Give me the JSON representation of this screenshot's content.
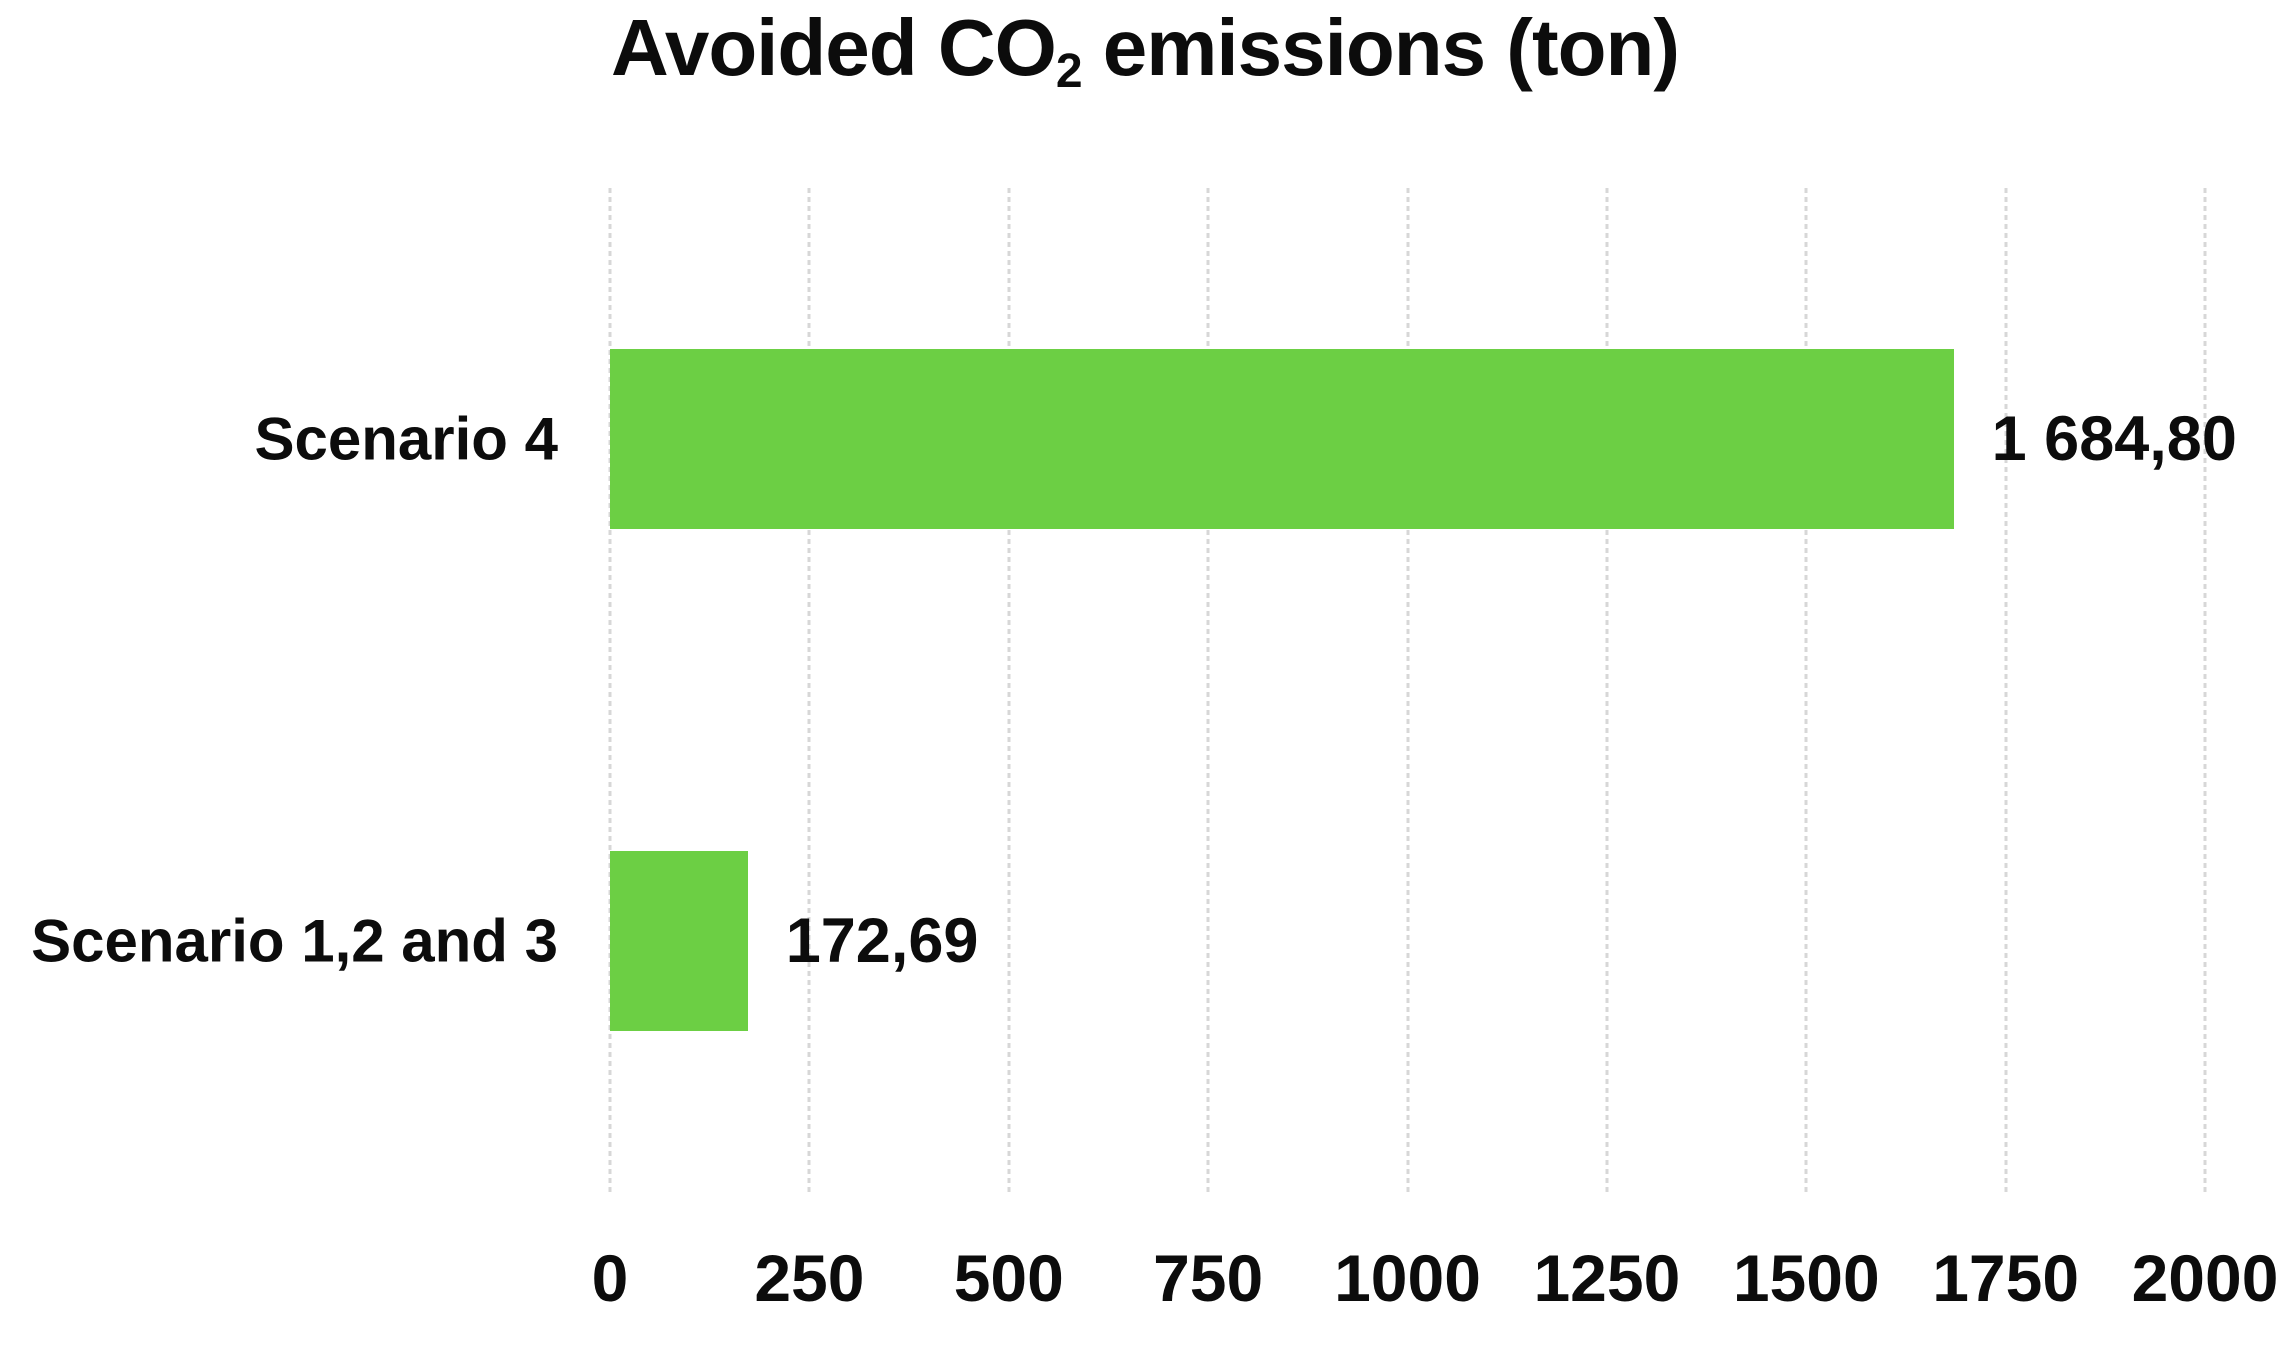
{
  "title": {
    "prefix": "Avoided CO",
    "subscript": "2",
    "suffix": " emissions (ton)"
  },
  "chart_data": {
    "type": "bar",
    "orientation": "horizontal",
    "title": "Avoided CO₂ emissions (ton)",
    "categories": [
      "Scenario 4",
      "Scenario 1,2 and 3"
    ],
    "values": [
      1684.8,
      172.69
    ],
    "value_labels": [
      "1 684,80",
      "172,69"
    ],
    "xlabel": "",
    "ylabel": "",
    "xlim": [
      0,
      2000
    ],
    "xticks": [
      0,
      250,
      500,
      750,
      1000,
      1250,
      1500,
      1750,
      2000
    ],
    "xtick_labels": [
      "0",
      "250",
      "500",
      "750",
      "1000",
      "1250",
      "1500",
      "1750",
      "2000"
    ],
    "grid": "vertical-dotted",
    "legend": "none",
    "bar_color": "#6CCF44",
    "gridline_color": "#D7D7D7",
    "text_color": "#0C0C0C",
    "background_color": "#FFFFFF"
  }
}
